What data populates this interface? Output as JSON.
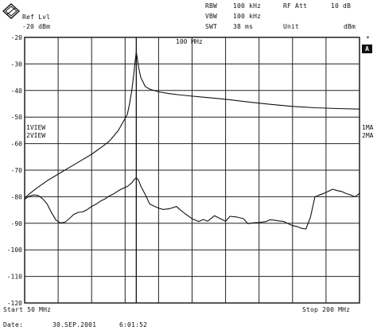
{
  "header": {
    "ref_label": "Ref Lvl",
    "ref_value": "-20 dBm",
    "rbw_label": "RBW",
    "rbw_value": "100 kHz",
    "vbw_label": "VBW",
    "vbw_value": "100 kHz",
    "swt_label": "SWT",
    "swt_value": "38 ms",
    "rfatt_label": "RF Att",
    "rfatt_value": "10 dB",
    "unit_label": "Unit",
    "unit_value": "dBm"
  },
  "side": {
    "star": "*",
    "a_badge": "A",
    "view1": "1VIEW",
    "view2": "2VIEW",
    "ma1": "1MA",
    "ma2": "2MA"
  },
  "marker_label": "100 MHz",
  "footer": {
    "start": "Start 50 MHz",
    "stop": "Stop 200 MHz",
    "date_label": "Date:",
    "date_value": "30.SEP.2001",
    "time_value": "6:01:52"
  },
  "chart_data": {
    "type": "line",
    "title": "",
    "xlabel": "",
    "ylabel": "",
    "x_unit": "MHz",
    "y_unit": "dBm",
    "xlim": [
      50,
      200
    ],
    "ylim": [
      -120,
      -20
    ],
    "grid": true,
    "ytick_labels": [
      "-20",
      "-30",
      "-40",
      "-50",
      "-60",
      "-70",
      "-80",
      "-90",
      "-100",
      "-110",
      "-120"
    ],
    "series": [
      {
        "x": [
          50,
          52,
          55,
          60,
          65,
          70,
          75,
          80,
          85,
          88,
          90,
          92,
          94,
          96,
          97,
          98,
          99,
          99.5,
          100,
          100.5,
          101,
          102,
          104,
          106,
          110,
          115,
          120,
          130,
          140,
          150,
          160,
          170,
          180,
          190,
          200
        ],
        "y": [
          -80.5,
          -79,
          -77,
          -74,
          -71.5,
          -69,
          -66.5,
          -64,
          -61,
          -59,
          -57,
          -55,
          -52,
          -49,
          -45,
          -40,
          -33,
          -29,
          -25.5,
          -28,
          -31,
          -35,
          -38.5,
          -39.5,
          -40.5,
          -41.2,
          -41.7,
          -42.5,
          -43.3,
          -44.3,
          -45.2,
          -46,
          -46.5,
          -46.8,
          -47
        ]
      },
      {
        "x": [
          50,
          52,
          54,
          56,
          58,
          60,
          62,
          64,
          66,
          68,
          70,
          72,
          74,
          76,
          78,
          80,
          82,
          84,
          86,
          88,
          90,
          92,
          94,
          96,
          98,
          99,
          100,
          101,
          102,
          104,
          106,
          108,
          110,
          112,
          115,
          118,
          120,
          122,
          125,
          128,
          130,
          132,
          135,
          138,
          140,
          142,
          145,
          148,
          150,
          152,
          155,
          158,
          160,
          162,
          164,
          166,
          168,
          170,
          172,
          174,
          176,
          178,
          180,
          182,
          184,
          186,
          188,
          190,
          192,
          194,
          196,
          198,
          200
        ],
        "y": [
          -81,
          -79.5,
          -79,
          -79.5,
          -81,
          -83,
          -86,
          -88.5,
          -89.5,
          -89.5,
          -88.5,
          -87,
          -86,
          -85.5,
          -84.5,
          -83.5,
          -83,
          -82,
          -81,
          -79.5,
          -78.5,
          -77.5,
          -77,
          -76.5,
          -75,
          -73.5,
          -72.5,
          -73.5,
          -76,
          -79.5,
          -83,
          -83.5,
          -84,
          -84.5,
          -84.5,
          -84,
          -85.5,
          -86.5,
          -88,
          -89,
          -88.5,
          -89.5,
          -87.5,
          -88.5,
          -89,
          -87,
          -87.5,
          -88.5,
          -90.5,
          -90,
          -89.5,
          -89,
          -88.5,
          -89,
          -89.5,
          -89.5,
          -90,
          -90.5,
          -91,
          -92,
          -92.5,
          -88,
          -80,
          -79,
          -78.5,
          -78,
          -77.5,
          -78,
          -78,
          -78.5,
          -79,
          -80,
          -79
        ]
      }
    ],
    "annotations": [
      "100 MHz",
      "1VIEW",
      "2VIEW",
      "1MA",
      "2MA"
    ]
  }
}
